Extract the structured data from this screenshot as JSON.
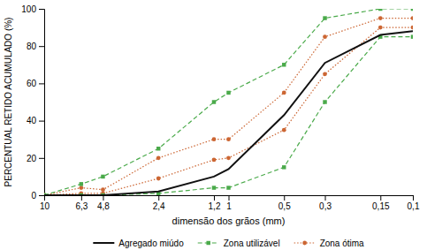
{
  "chart_data": {
    "type": "line",
    "xlabel": "dimensão dos grãos (mm)",
    "ylabel": "PERCENTUAL RETIDO ACUMULADO (%)",
    "log": "x",
    "xlim": [
      10,
      0.1
    ],
    "ylim": [
      0,
      100
    ],
    "xticks": [
      10,
      {
        "value": 6.3,
        "label": "6,3"
      },
      {
        "value": 4.8,
        "label": "4,8"
      },
      {
        "value": 2.4,
        "label": "2,4"
      },
      {
        "value": 1.2,
        "label": "1,2"
      },
      1,
      {
        "value": 0.5,
        "label": "0,5"
      },
      {
        "value": 0.3,
        "label": "0,3"
      },
      {
        "value": 0.15,
        "label": "0,15"
      },
      {
        "value": 0.1,
        "label": "0,1"
      }
    ],
    "yticks": [
      0,
      20,
      40,
      60,
      80,
      100
    ],
    "grid": false,
    "legend": "bottom",
    "x": [
      10,
      6.3,
      4.8,
      2.4,
      1.2,
      1.0,
      0.5,
      0.3,
      0.15,
      0.1
    ],
    "series": [
      {
        "name": "Agregado miúdo",
        "color": "#111111",
        "line_style": "solid",
        "values": [
          0,
          0,
          0,
          2,
          10,
          14,
          43,
          71,
          86,
          88
        ]
      },
      {
        "name": "Zona utilizável",
        "color": "#4aaa4a",
        "line_style": "dashed",
        "marker": "square",
        "values": [
          0,
          6,
          10,
          25,
          50,
          55,
          70,
          95,
          100,
          100
        ]
      },
      {
        "color": "#4aaa4a",
        "line_style": "dashed",
        "marker": "square",
        "values": [
          0,
          0,
          0,
          1,
          4,
          4,
          15,
          50,
          85,
          85
        ]
      },
      {
        "name": "Zona ótima",
        "color": "#cc6633",
        "line_style": "dotted",
        "marker": "circle",
        "values": [
          0,
          4,
          3,
          20,
          30,
          30,
          55,
          85,
          95,
          95
        ]
      },
      {
        "color": "#cc6633",
        "line_style": "dotted",
        "marker": "circle",
        "values": [
          0,
          1,
          1,
          9,
          19,
          20,
          35,
          65,
          90,
          90
        ]
      }
    ]
  }
}
